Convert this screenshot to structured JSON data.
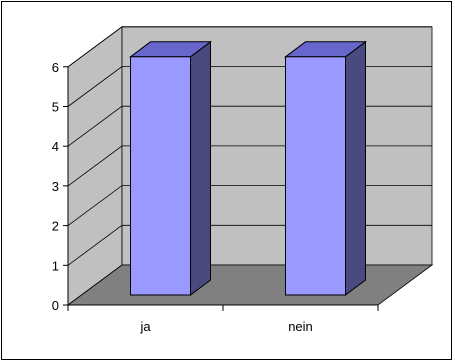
{
  "chart_data": {
    "type": "bar",
    "style": "3d-column",
    "categories": [
      "ja",
      "nein"
    ],
    "values": [
      6,
      6
    ],
    "title": "",
    "xlabel": "",
    "ylabel": "",
    "ylim": [
      0,
      6
    ],
    "y_ticks": [
      "0",
      "1",
      "2",
      "3",
      "4",
      "5",
      "6"
    ],
    "grid": true,
    "legend": "none",
    "colors": {
      "bar_front": "#9999ff",
      "bar_side": "#4a4a80",
      "bar_top": "#6666cc",
      "wall": "#c0c0c0",
      "floor": "#808080",
      "gridline": "#000000"
    }
  }
}
